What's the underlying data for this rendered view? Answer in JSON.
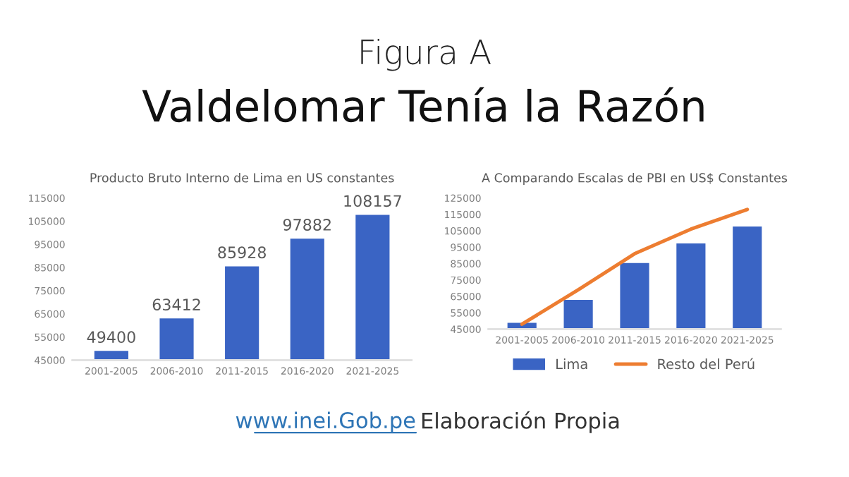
{
  "chart_data": [
    {
      "type": "other",
      "title": "Figura A",
      "subtitle": "Valdelomar Tenía la Razón",
      "annotations": [
        "www.inei.Gob.pe",
        "Elaboración Propia"
      ]
    },
    {
      "type": "bar",
      "title": "Producto Bruto Interno de Lima en US constantes",
      "categories": [
        "2001-2005",
        "2006-2010",
        "2011-2015",
        "2016-2020",
        "2021-2025"
      ],
      "values": [
        49400,
        63412,
        85928,
        97882,
        108157
      ],
      "color": "#3a64c4",
      "data_labels": true,
      "ylim": [
        45000,
        115000
      ],
      "yticks": [
        45000,
        55000,
        65000,
        75000,
        85000,
        95000,
        105000,
        115000
      ],
      "grid": false,
      "legend": false
    },
    {
      "type": "bar",
      "title": "A Comparando Escalas de PBI en US$ Constantes",
      "categories": [
        "2001-2005",
        "2006-2010",
        "2011-2015",
        "2016-2020",
        "2021-2025"
      ],
      "series": [
        {
          "name": "Lima",
          "type": "bar",
          "color": "#3a64c4",
          "values": [
            49400,
            63412,
            85928,
            97882,
            108157
          ]
        },
        {
          "name": "Resto del Perú",
          "type": "line",
          "color": "#ed7d31",
          "values": [
            48000,
            69000,
            91000,
            106000,
            118000
          ]
        }
      ],
      "ylim": [
        45000,
        125000
      ],
      "yticks": [
        45000,
        55000,
        65000,
        75000,
        85000,
        95000,
        105000,
        115000,
        125000
      ],
      "grid": false,
      "legend": "bottom",
      "marker": "none"
    }
  ]
}
